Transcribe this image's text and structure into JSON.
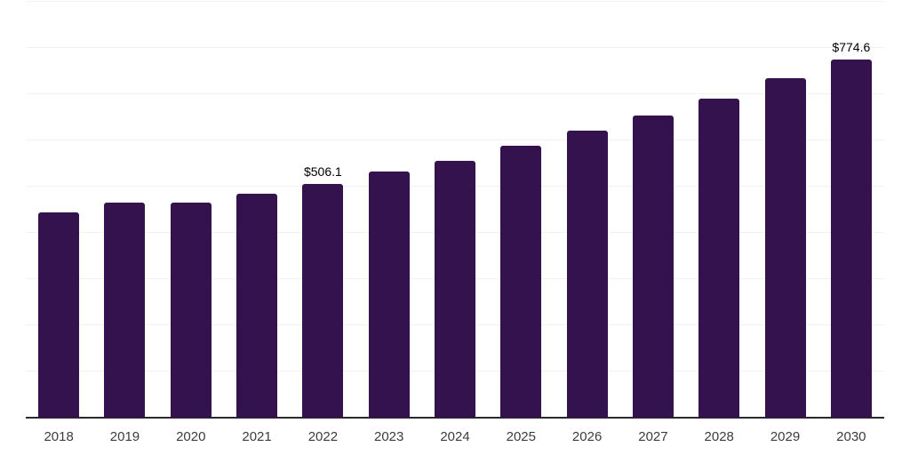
{
  "chart": {
    "background_color": "#ffffff",
    "bar_color": "#34124e",
    "gridline_color": "#f2f2f2",
    "axis_line_color": "#2b2b2b",
    "tick_label_color": "#3c3c3c",
    "data_label_color": "#000000"
  },
  "chart_data": {
    "type": "bar",
    "title": "",
    "xlabel": "",
    "ylabel": "",
    "categories": [
      "2018",
      "2019",
      "2020",
      "2021",
      "2022",
      "2023",
      "2024",
      "2025",
      "2026",
      "2027",
      "2028",
      "2029",
      "2030"
    ],
    "values": [
      445.0,
      466.0,
      465.0,
      484.6,
      506.1,
      532.0,
      555.4,
      588.0,
      620.6,
      654.0,
      691.0,
      733.8,
      774.6
    ],
    "data_labels": [
      "",
      "",
      "",
      "",
      "$506.1",
      "",
      "",
      "",
      "",
      "",
      "",
      "",
      "$774.6"
    ],
    "ylim": [
      0,
      900
    ],
    "grid_step": 100,
    "grid": "horizontal-only",
    "legend": "none",
    "y_axis_labels_visible": false
  }
}
